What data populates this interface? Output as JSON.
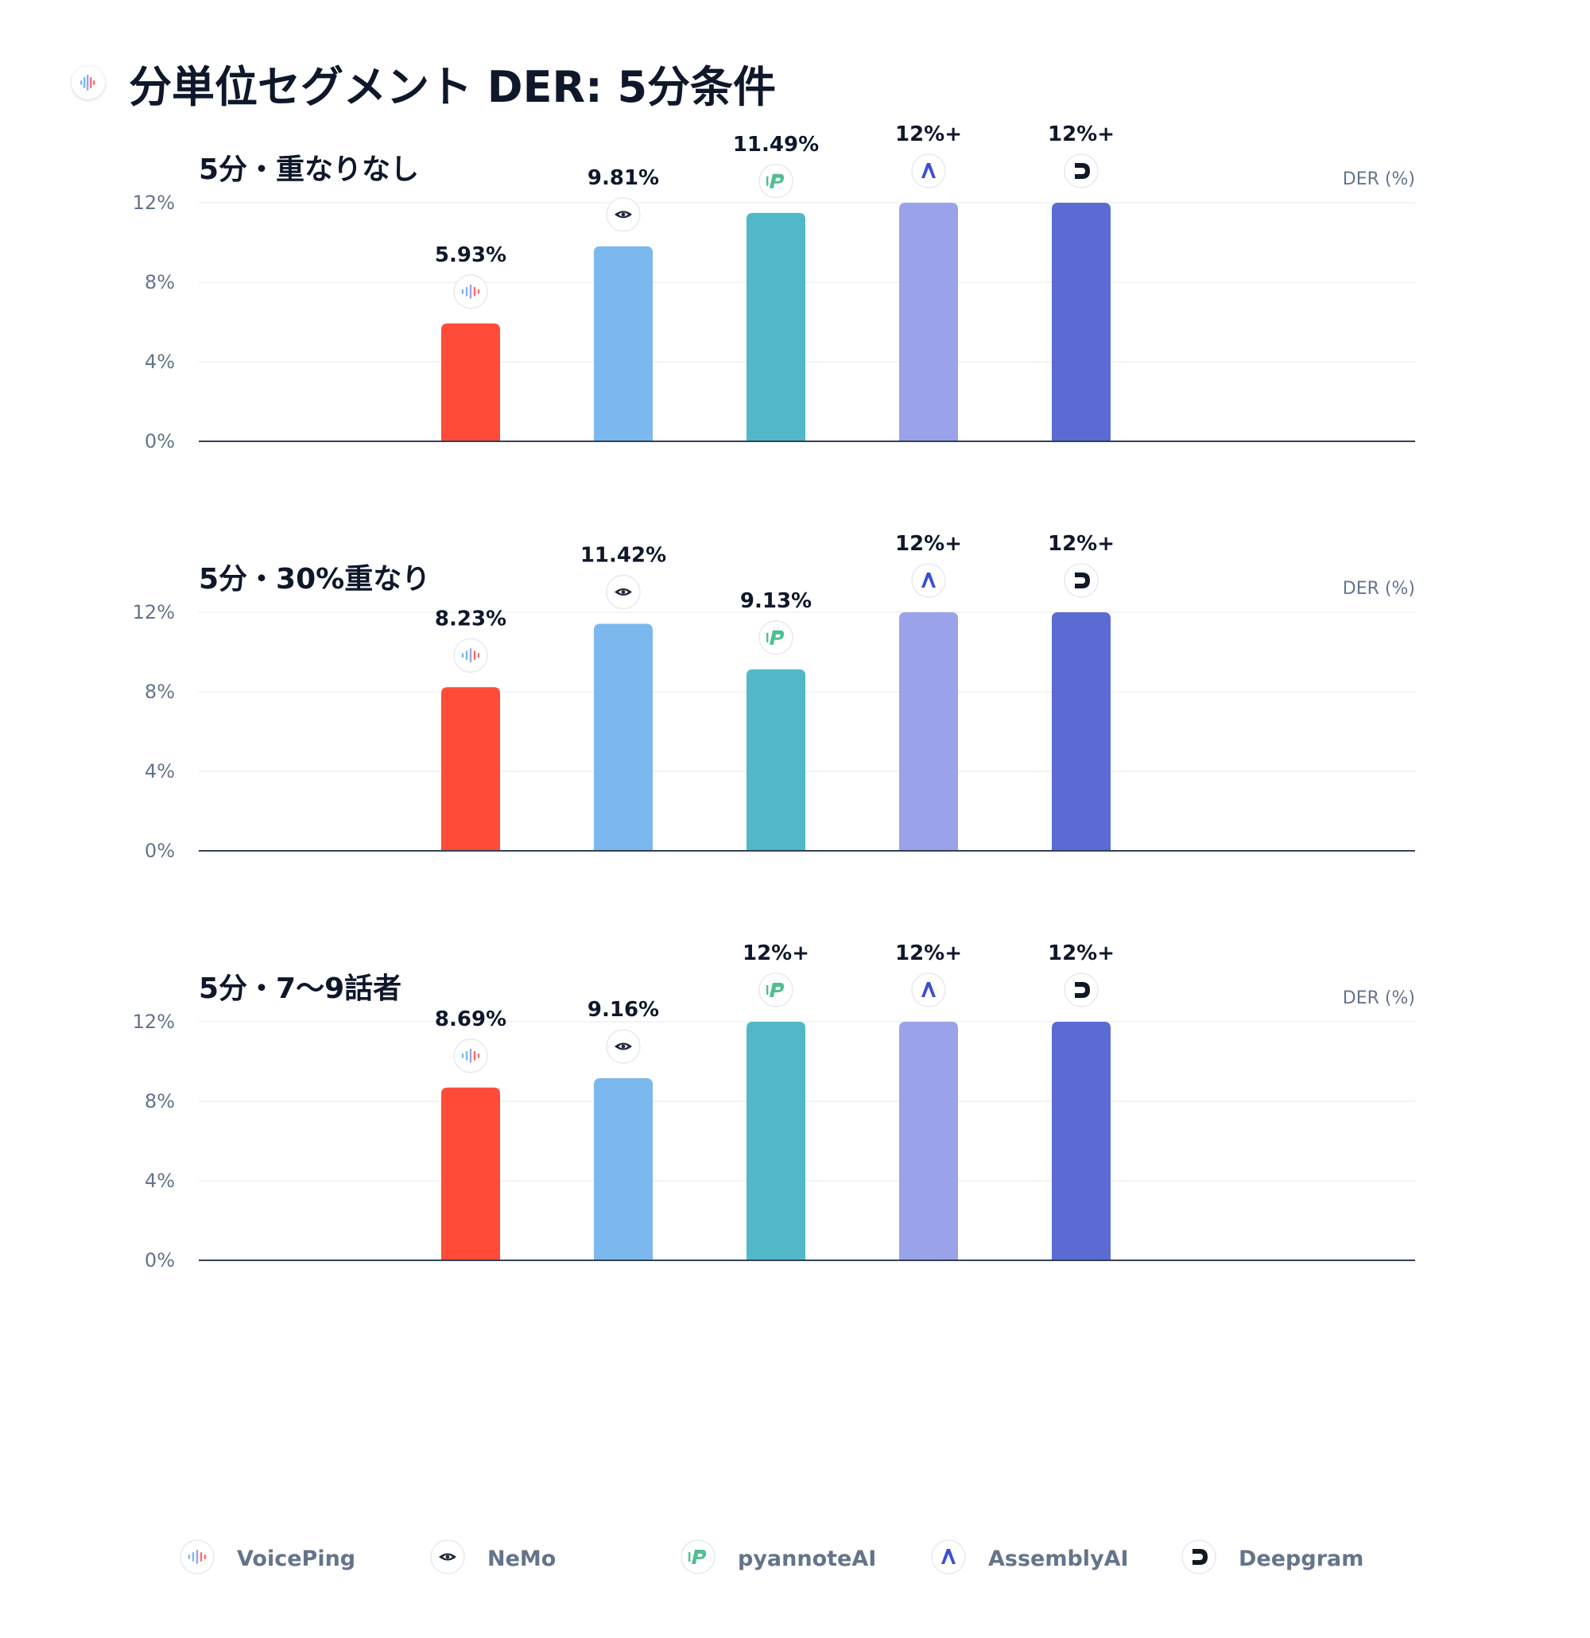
{
  "title": "分単位セグメント DER: 5分条件",
  "title_icon": "voiceping-icon",
  "chart_data": [
    {
      "type": "bar",
      "title": "5分・重なりなし",
      "ylabel": "DER (%)",
      "ylim": [
        0,
        12
      ],
      "yticks": [
        "0%",
        "4%",
        "8%",
        "12%"
      ],
      "grid": true,
      "categories": [
        "VoicePing",
        "NeMo",
        "pyannoteAI",
        "AssemblyAI",
        "Deepgram"
      ],
      "values": [
        5.93,
        9.81,
        11.49,
        12,
        12
      ],
      "labels": [
        "5.93%",
        "9.81%",
        "11.49%",
        "12%+",
        "12%+"
      ]
    },
    {
      "type": "bar",
      "title": "5分・30%重なり",
      "ylabel": "DER (%)",
      "ylim": [
        0,
        12
      ],
      "yticks": [
        "0%",
        "4%",
        "8%",
        "12%"
      ],
      "grid": true,
      "categories": [
        "VoicePing",
        "NeMo",
        "pyannoteAI",
        "AssemblyAI",
        "Deepgram"
      ],
      "values": [
        8.23,
        11.42,
        9.13,
        12,
        12
      ],
      "labels": [
        "8.23%",
        "11.42%",
        "9.13%",
        "12%+",
        "12%+"
      ]
    },
    {
      "type": "bar",
      "title": "5分・7〜9話者",
      "ylabel": "DER (%)",
      "ylim": [
        0,
        12
      ],
      "yticks": [
        "0%",
        "4%",
        "8%",
        "12%"
      ],
      "grid": true,
      "categories": [
        "VoicePing",
        "NeMo",
        "pyannoteAI",
        "AssemblyAI",
        "Deepgram"
      ],
      "values": [
        8.69,
        9.16,
        12,
        12,
        12
      ],
      "labels": [
        "8.69%",
        "9.16%",
        "12%+",
        "12%+",
        "12%+"
      ]
    }
  ],
  "vendors": [
    {
      "name": "VoicePing",
      "color": "#ff4b37",
      "icon": "voiceping-icon"
    },
    {
      "name": "NeMo",
      "color": "#7bb8ed",
      "icon": "nemo-icon"
    },
    {
      "name": "pyannoteAI",
      "color": "#50b8c9",
      "icon": "pyannoteai-icon"
    },
    {
      "name": "AssemblyAI",
      "color": "#9aa3e9",
      "icon": "assemblyai-icon"
    },
    {
      "name": "Deepgram",
      "color": "#5b6bd3",
      "icon": "deepgram-icon"
    }
  ],
  "legend": {
    "placement": "bottom",
    "items": [
      "VoicePing",
      "NeMo",
      "pyannoteAI",
      "AssemblyAI",
      "Deepgram"
    ]
  }
}
